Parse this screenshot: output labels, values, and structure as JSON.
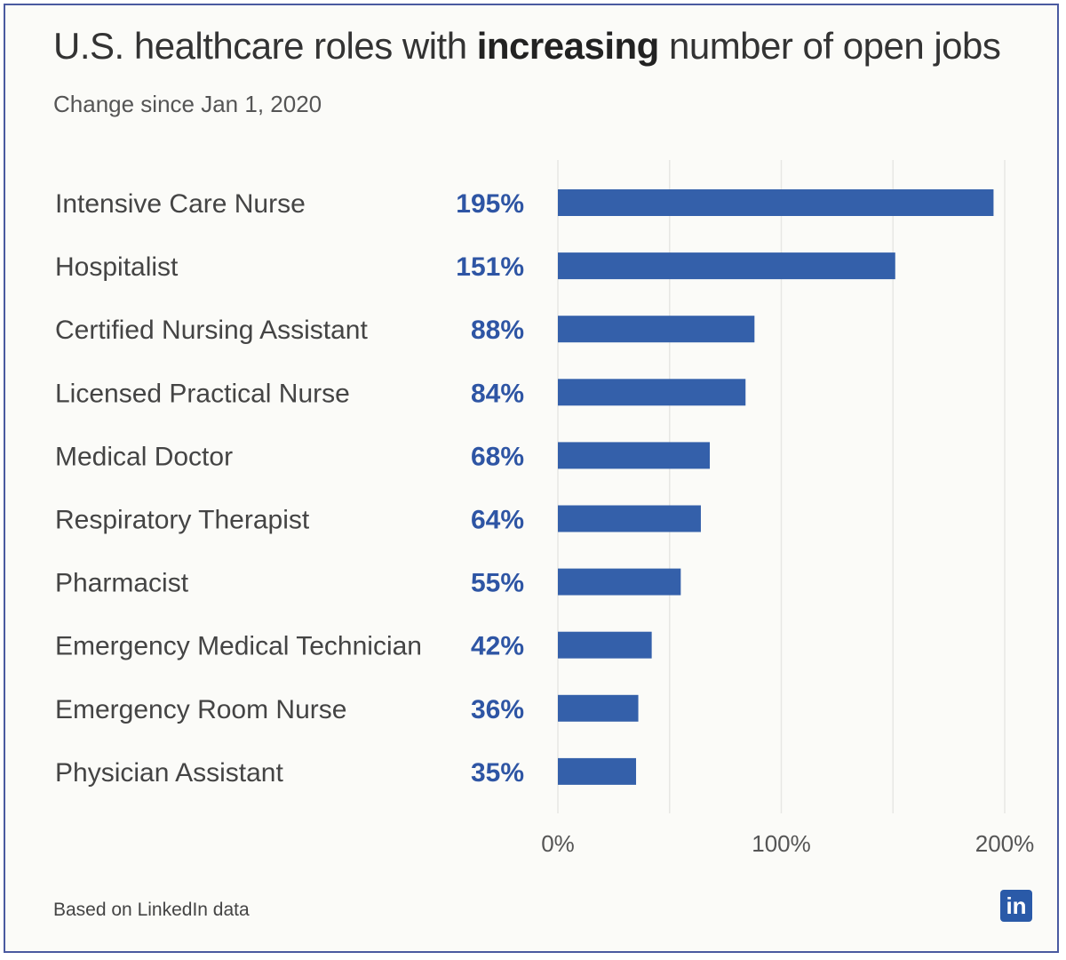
{
  "title": {
    "prefix": "U.S. healthcare roles with ",
    "emphasis": "increasing",
    "suffix": " number of open jobs"
  },
  "subtitle": "Change since Jan 1, 2020",
  "footer": "Based on LinkedIn data",
  "logo_text": "in",
  "colors": {
    "bar": "#3460aa",
    "value_label": "#2e55a4",
    "grid": "#e7e7e4"
  },
  "chart_data": {
    "type": "bar",
    "orientation": "horizontal",
    "categories": [
      "Intensive Care Nurse",
      "Hospitalist",
      "Certified Nursing Assistant",
      "Licensed Practical Nurse",
      "Medical Doctor",
      "Respiratory Therapist",
      "Pharmacist",
      "Emergency Medical Technician",
      "Emergency Room Nurse",
      "Physician Assistant"
    ],
    "values": [
      195,
      151,
      88,
      84,
      68,
      64,
      55,
      42,
      36,
      35
    ],
    "value_labels": [
      "195%",
      "151%",
      "88%",
      "84%",
      "68%",
      "64%",
      "55%",
      "42%",
      "36%",
      "35%"
    ],
    "xlim": [
      0,
      200
    ],
    "ticks": [
      0,
      100,
      200
    ],
    "tick_labels": [
      "0%",
      "100%",
      "200%"
    ],
    "grid": true
  }
}
